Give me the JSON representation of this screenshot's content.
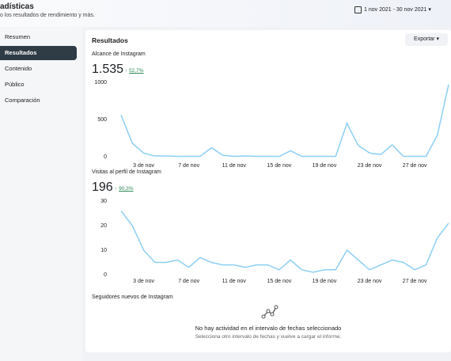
{
  "header": {
    "title": "adísticas",
    "subtitle": "o los resultados de rendimiento y más.",
    "date_range": "1 nov 2021 - 30 nov 2021"
  },
  "sidebar": {
    "items": [
      "Resumen",
      "Resultados",
      "Contenido",
      "Público",
      "Comparación"
    ]
  },
  "card": {
    "title": "Resultados",
    "export": "Exportar"
  },
  "metrics": [
    {
      "label": "Alcance de Instagram",
      "total": "1.535",
      "change": "52,7%"
    },
    {
      "label": "Visitas al perfil de Instagram",
      "total": "196",
      "change": "90,3%"
    }
  ],
  "followers": {
    "label": "Seguidores nuevos de Instagram",
    "empty_title": "No hay actividad en el intervalo de fechas seleccionado",
    "empty_text": "Selecciona otro intervalo de fechas y vuelve a cargar el informe."
  },
  "chart_data": [
    {
      "type": "line",
      "categories": [
        null,
        null,
        "3 de nov",
        null,
        null,
        null,
        "7 de nov",
        null,
        null,
        null,
        "11 de nov",
        null,
        null,
        null,
        "15 de nov",
        null,
        null,
        null,
        "19 de nov",
        null,
        null,
        null,
        "23 de nov",
        null,
        null,
        null,
        "27 de nov",
        null,
        null,
        null
      ],
      "values": [
        560,
        180,
        50,
        10,
        10,
        5,
        5,
        5,
        120,
        20,
        5,
        10,
        5,
        5,
        5,
        80,
        5,
        5,
        5,
        5,
        450,
        150,
        50,
        30,
        160,
        5,
        5,
        5,
        290,
        970
      ],
      "color": "#8ccff2",
      "ylim": [
        0,
        1000
      ],
      "yticks": [
        0,
        500,
        1000
      ],
      "grid": false
    },
    {
      "type": "line",
      "categories": [
        null,
        null,
        "3 de nov",
        null,
        null,
        null,
        "7 de nov",
        null,
        null,
        null,
        "11 de nov",
        null,
        null,
        null,
        "15 de nov",
        null,
        null,
        null,
        "19 de nov",
        null,
        null,
        null,
        "23 de nov",
        null,
        null,
        null,
        "27 de nov",
        null,
        null,
        null
      ],
      "values": [
        26,
        20,
        10,
        5,
        5,
        6,
        3,
        7,
        5,
        4,
        4,
        3,
        4,
        4,
        2,
        6,
        2,
        1,
        2,
        2,
        10,
        6,
        2,
        4,
        6,
        5,
        2,
        4,
        15,
        21
      ],
      "color": "#8ccff2",
      "ylim": [
        0,
        30
      ],
      "yticks": [
        0,
        10,
        20,
        30
      ],
      "grid": false
    }
  ]
}
